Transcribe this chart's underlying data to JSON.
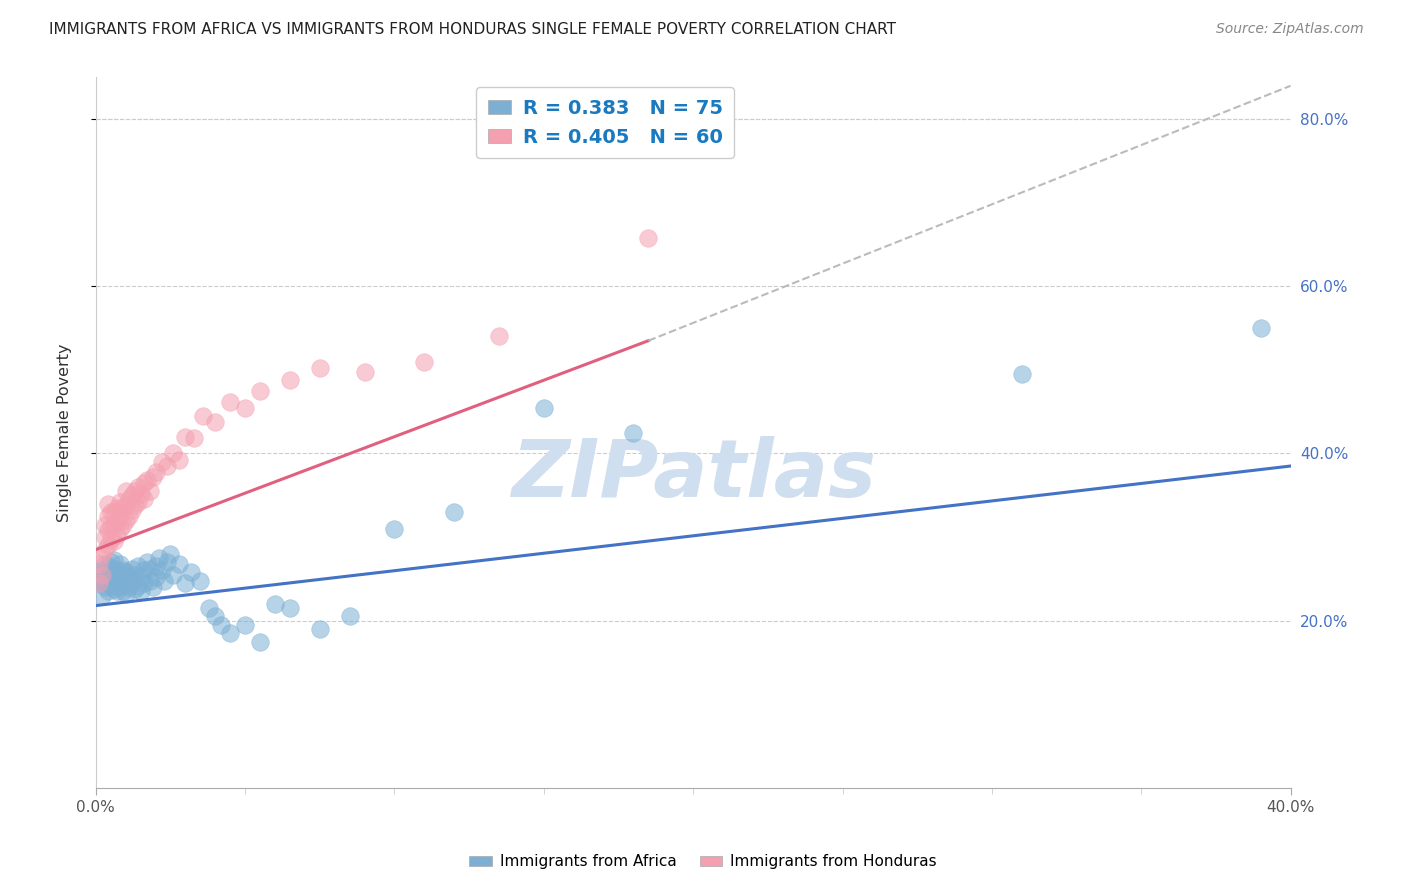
{
  "title": "IMMIGRANTS FROM AFRICA VS IMMIGRANTS FROM HONDURAS SINGLE FEMALE POVERTY CORRELATION CHART",
  "source": "Source: ZipAtlas.com",
  "ylabel": "Single Female Poverty",
  "xlim": [
    0.0,
    0.4
  ],
  "ylim": [
    0.0,
    0.85
  ],
  "yticks": [
    0.2,
    0.4,
    0.6,
    0.8
  ],
  "ytick_labels": [
    "20.0%",
    "40.0%",
    "60.0%",
    "80.0%"
  ],
  "xtick_only": [
    0.0,
    0.4
  ],
  "xtick_labels_only": [
    "0.0%",
    "40.0%"
  ],
  "grid_color": "#cccccc",
  "background_color": "#ffffff",
  "africa_color": "#7bafd4",
  "africa_edge_color": "#7bafd4",
  "honduras_color": "#f4a0b0",
  "honduras_edge_color": "#f4a0b0",
  "africa_R": 0.383,
  "africa_N": 75,
  "honduras_R": 0.405,
  "honduras_N": 60,
  "africa_line_color": "#4472c4",
  "honduras_line_color": "#e06080",
  "dashed_line_color": "#bbbbbb",
  "legend_text_color": "#1a7abf",
  "africa_regress": [
    0.0,
    0.218,
    0.4,
    0.385
  ],
  "honduras_regress": [
    0.0,
    0.285,
    0.185,
    0.535
  ],
  "dashed_regress": [
    0.185,
    0.535,
    0.4,
    0.84
  ],
  "watermark": "ZIPatlas",
  "watermark_color": "#d0dff0",
  "africa_scatter_x": [
    0.001,
    0.001,
    0.002,
    0.002,
    0.002,
    0.003,
    0.003,
    0.003,
    0.004,
    0.004,
    0.004,
    0.004,
    0.005,
    0.005,
    0.005,
    0.006,
    0.006,
    0.006,
    0.006,
    0.007,
    0.007,
    0.007,
    0.008,
    0.008,
    0.008,
    0.009,
    0.009,
    0.009,
    0.01,
    0.01,
    0.01,
    0.011,
    0.011,
    0.012,
    0.012,
    0.013,
    0.013,
    0.014,
    0.014,
    0.015,
    0.015,
    0.016,
    0.016,
    0.017,
    0.018,
    0.018,
    0.019,
    0.02,
    0.02,
    0.021,
    0.022,
    0.023,
    0.024,
    0.025,
    0.026,
    0.028,
    0.03,
    0.032,
    0.035,
    0.038,
    0.04,
    0.042,
    0.045,
    0.05,
    0.055,
    0.06,
    0.065,
    0.075,
    0.085,
    0.1,
    0.12,
    0.15,
    0.18,
    0.31,
    0.39
  ],
  "africa_scatter_y": [
    0.245,
    0.255,
    0.248,
    0.26,
    0.23,
    0.252,
    0.24,
    0.268,
    0.235,
    0.255,
    0.245,
    0.265,
    0.242,
    0.252,
    0.27,
    0.238,
    0.248,
    0.258,
    0.272,
    0.235,
    0.245,
    0.26,
    0.242,
    0.255,
    0.268,
    0.235,
    0.248,
    0.26,
    0.232,
    0.245,
    0.258,
    0.24,
    0.252,
    0.245,
    0.262,
    0.238,
    0.255,
    0.242,
    0.265,
    0.235,
    0.252,
    0.245,
    0.26,
    0.27,
    0.248,
    0.262,
    0.24,
    0.252,
    0.265,
    0.275,
    0.26,
    0.248,
    0.27,
    0.28,
    0.255,
    0.268,
    0.245,
    0.258,
    0.248,
    0.215,
    0.205,
    0.195,
    0.185,
    0.195,
    0.175,
    0.22,
    0.215,
    0.19,
    0.205,
    0.31,
    0.33,
    0.455,
    0.425,
    0.495,
    0.55
  ],
  "honduras_scatter_x": [
    0.001,
    0.001,
    0.002,
    0.002,
    0.003,
    0.003,
    0.003,
    0.004,
    0.004,
    0.004,
    0.004,
    0.005,
    0.005,
    0.005,
    0.006,
    0.006,
    0.006,
    0.007,
    0.007,
    0.007,
    0.008,
    0.008,
    0.008,
    0.009,
    0.009,
    0.01,
    0.01,
    0.01,
    0.011,
    0.011,
    0.012,
    0.012,
    0.013,
    0.013,
    0.014,
    0.014,
    0.015,
    0.016,
    0.016,
    0.017,
    0.018,
    0.019,
    0.02,
    0.022,
    0.024,
    0.026,
    0.028,
    0.03,
    0.033,
    0.036,
    0.04,
    0.045,
    0.05,
    0.055,
    0.065,
    0.075,
    0.09,
    0.11,
    0.135,
    0.185
  ],
  "honduras_scatter_y": [
    0.245,
    0.268,
    0.255,
    0.278,
    0.285,
    0.3,
    0.315,
    0.29,
    0.308,
    0.325,
    0.34,
    0.298,
    0.312,
    0.33,
    0.295,
    0.315,
    0.33,
    0.302,
    0.318,
    0.335,
    0.31,
    0.325,
    0.342,
    0.315,
    0.335,
    0.32,
    0.338,
    0.355,
    0.325,
    0.345,
    0.332,
    0.35,
    0.338,
    0.355,
    0.342,
    0.36,
    0.352,
    0.365,
    0.345,
    0.368,
    0.355,
    0.372,
    0.378,
    0.39,
    0.385,
    0.4,
    0.392,
    0.42,
    0.418,
    0.445,
    0.438,
    0.462,
    0.455,
    0.475,
    0.488,
    0.502,
    0.498,
    0.51,
    0.54,
    0.658
  ]
}
